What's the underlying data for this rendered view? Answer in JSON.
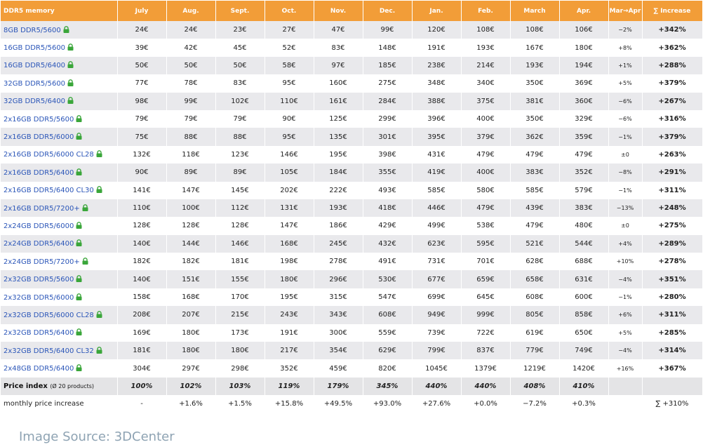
{
  "table": {
    "columns": [
      "DDR5 memory",
      "July",
      "Aug.",
      "Sept.",
      "Oct.",
      "Nov.",
      "Dec.",
      "Jan.",
      "Feb.",
      "March",
      "Apr.",
      "Mar→Apr",
      "∑ Increase"
    ],
    "rows": [
      {
        "product": "8GB DDR5/5600",
        "prices": [
          "24€",
          "24€",
          "23€",
          "27€",
          "47€",
          "99€",
          "120€",
          "108€",
          "108€",
          "106€"
        ],
        "change": "−2%",
        "increase": "+342%"
      },
      {
        "product": "16GB DDR5/5600",
        "prices": [
          "39€",
          "42€",
          "45€",
          "52€",
          "83€",
          "148€",
          "191€",
          "193€",
          "167€",
          "180€"
        ],
        "change": "+8%",
        "increase": "+362%"
      },
      {
        "product": "16GB DDR5/6400",
        "prices": [
          "50€",
          "50€",
          "50€",
          "58€",
          "97€",
          "185€",
          "238€",
          "214€",
          "193€",
          "194€"
        ],
        "change": "+1%",
        "increase": "+288%"
      },
      {
        "product": "32GB DDR5/5600",
        "prices": [
          "77€",
          "78€",
          "83€",
          "95€",
          "160€",
          "275€",
          "348€",
          "340€",
          "350€",
          "369€"
        ],
        "change": "+5%",
        "increase": "+379%"
      },
      {
        "product": "32GB DDR5/6400",
        "prices": [
          "98€",
          "99€",
          "102€",
          "110€",
          "161€",
          "284€",
          "388€",
          "375€",
          "381€",
          "360€"
        ],
        "change": "−6%",
        "increase": "+267%"
      },
      {
        "product": "2x16GB DDR5/5600",
        "prices": [
          "79€",
          "79€",
          "79€",
          "90€",
          "125€",
          "299€",
          "396€",
          "400€",
          "350€",
          "329€"
        ],
        "change": "−6%",
        "increase": "+316%"
      },
      {
        "product": "2x16GB DDR5/6000",
        "prices": [
          "75€",
          "88€",
          "88€",
          "95€",
          "135€",
          "301€",
          "395€",
          "379€",
          "362€",
          "359€"
        ],
        "change": "−1%",
        "increase": "+379%"
      },
      {
        "product": "2x16GB DDR5/6000 CL28",
        "prices": [
          "132€",
          "118€",
          "123€",
          "146€",
          "195€",
          "398€",
          "431€",
          "479€",
          "479€",
          "479€"
        ],
        "change": "±0",
        "increase": "+263%"
      },
      {
        "product": "2x16GB DDR5/6400",
        "prices": [
          "90€",
          "89€",
          "89€",
          "105€",
          "184€",
          "355€",
          "419€",
          "400€",
          "383€",
          "352€"
        ],
        "change": "−8%",
        "increase": "+291%"
      },
      {
        "product": "2x16GB DDR5/6400 CL30",
        "prices": [
          "141€",
          "147€",
          "145€",
          "202€",
          "222€",
          "493€",
          "585€",
          "580€",
          "585€",
          "579€"
        ],
        "change": "−1%",
        "increase": "+311%"
      },
      {
        "product": "2x16GB DDR5/7200+",
        "prices": [
          "110€",
          "100€",
          "112€",
          "131€",
          "193€",
          "418€",
          "446€",
          "479€",
          "439€",
          "383€"
        ],
        "change": "−13%",
        "increase": "+248%"
      },
      {
        "product": "2x24GB DDR5/6000",
        "prices": [
          "128€",
          "128€",
          "128€",
          "147€",
          "186€",
          "429€",
          "499€",
          "538€",
          "479€",
          "480€"
        ],
        "change": "±0",
        "increase": "+275%"
      },
      {
        "product": "2x24GB DDR5/6400",
        "prices": [
          "140€",
          "144€",
          "146€",
          "168€",
          "245€",
          "432€",
          "623€",
          "595€",
          "521€",
          "544€"
        ],
        "change": "+4%",
        "increase": "+289%"
      },
      {
        "product": "2x24GB DDR5/7200+",
        "prices": [
          "182€",
          "182€",
          "181€",
          "198€",
          "278€",
          "491€",
          "731€",
          "701€",
          "628€",
          "688€"
        ],
        "change": "+10%",
        "increase": "+278%"
      },
      {
        "product": "2x32GB DDR5/5600",
        "prices": [
          "140€",
          "151€",
          "155€",
          "180€",
          "296€",
          "530€",
          "677€",
          "659€",
          "658€",
          "631€"
        ],
        "change": "−4%",
        "increase": "+351%"
      },
      {
        "product": "2x32GB DDR5/6000",
        "prices": [
          "158€",
          "168€",
          "170€",
          "195€",
          "315€",
          "547€",
          "699€",
          "645€",
          "608€",
          "600€"
        ],
        "change": "−1%",
        "increase": "+280%"
      },
      {
        "product": "2x32GB DDR5/6000 CL28",
        "prices": [
          "208€",
          "207€",
          "215€",
          "243€",
          "343€",
          "608€",
          "949€",
          "999€",
          "805€",
          "858€"
        ],
        "change": "+6%",
        "increase": "+311%"
      },
      {
        "product": "2x32GB DDR5/6400",
        "prices": [
          "169€",
          "180€",
          "173€",
          "191€",
          "300€",
          "559€",
          "739€",
          "722€",
          "619€",
          "650€"
        ],
        "change": "+5%",
        "increase": "+285%"
      },
      {
        "product": "2x32GB DDR5/6400 CL32",
        "prices": [
          "181€",
          "180€",
          "180€",
          "217€",
          "354€",
          "629€",
          "799€",
          "837€",
          "779€",
          "749€"
        ],
        "change": "−4%",
        "increase": "+314%"
      },
      {
        "product": "2x48GB DDR5/6400",
        "prices": [
          "304€",
          "297€",
          "298€",
          "352€",
          "459€",
          "820€",
          "1045€",
          "1379€",
          "1219€",
          "1420€"
        ],
        "change": "+16%",
        "increase": "+367%"
      }
    ],
    "index_row": {
      "label": "Price index",
      "note": "(Ø 20 products)",
      "values": [
        "100%",
        "102%",
        "103%",
        "119%",
        "179%",
        "345%",
        "440%",
        "440%",
        "408%",
        "410%"
      ]
    },
    "monthly_row": {
      "label": "monthly price increase",
      "values": [
        "-",
        "+1.6%",
        "+1.5%",
        "+15.8%",
        "+49.5%",
        "+93.0%",
        "+27.6%",
        "+0.0%",
        "−7.2%",
        "+0.3%"
      ],
      "total": "∑ +310%"
    }
  },
  "footer": {
    "source": "Image Source: 3DCenter"
  }
}
